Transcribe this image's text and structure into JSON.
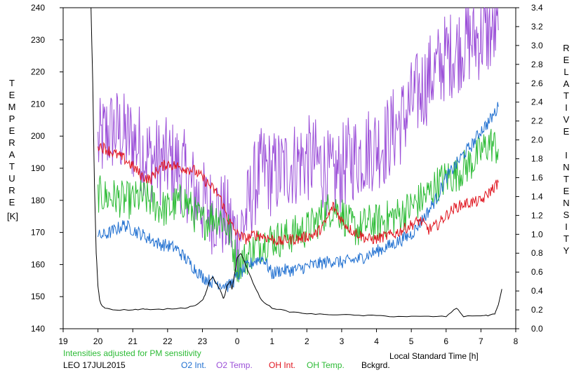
{
  "chart_data": {
    "type": "line",
    "left_axis_label": "TEMPERATURE",
    "left_axis_unit": "[K]",
    "right_axis_label": "RELATIVE INTENSITY",
    "xlabel": "Local Standard Time [h]",
    "note": "Intensities adjusted for PM sensitivity",
    "station_date": "LEO 17JUL2015",
    "x_ticks": [
      19,
      20,
      21,
      22,
      23,
      0,
      1,
      2,
      3,
      4,
      5,
      6,
      7,
      8
    ],
    "y_left_ticks": [
      140,
      150,
      160,
      170,
      180,
      190,
      200,
      210,
      220,
      230,
      240
    ],
    "y_right_ticks": [
      "0.0",
      "0.2",
      "0.4",
      "0.6",
      "0.8",
      "1.0",
      "1.2",
      "1.4",
      "1.6",
      "1.8",
      "2.0",
      "2.2",
      "2.4",
      "2.6",
      "2.8",
      "3.0",
      "3.2",
      "3.4"
    ],
    "x_range": [
      19,
      32
    ],
    "y_left_range": [
      140,
      240
    ],
    "y_right_range": [
      0,
      3.4
    ],
    "grid": false,
    "legend_position": "bottom",
    "colors": {
      "o2_int": "#1f6fd0",
      "o2_temp": "#9b4fd8",
      "oh_int": "#e0141e",
      "oh_temp": "#2cbb35",
      "bckgrd": "#000000"
    },
    "series": [
      {
        "name": "O2 Temp.",
        "axis": "left",
        "color_key": "o2_temp",
        "x": [
          20.0,
          20.25,
          20.5,
          20.75,
          21.0,
          21.25,
          21.5,
          21.75,
          22.0,
          22.25,
          22.5,
          22.75,
          23.0,
          23.25,
          23.5,
          23.75,
          24.0,
          24.25,
          24.5,
          24.75,
          25.0,
          25.25,
          25.5,
          25.75,
          26.0,
          26.25,
          26.5,
          26.75,
          27.0,
          27.25,
          27.5,
          27.75,
          28.0,
          28.25,
          28.5,
          28.75,
          29.0,
          29.25,
          29.5,
          29.75,
          30.0,
          30.25,
          30.5,
          30.75,
          31.0,
          31.25,
          31.5
        ],
        "y": [
          197,
          201,
          202,
          200,
          199,
          196,
          193,
          192,
          192,
          191,
          188,
          183,
          179,
          177,
          176,
          173,
          168,
          175,
          185,
          190,
          188,
          189,
          191,
          192,
          193,
          192,
          190,
          186,
          190,
          193,
          194,
          196,
          197,
          198,
          202,
          205,
          210,
          214,
          218,
          221,
          225,
          226,
          229,
          230,
          231,
          232,
          233
        ]
      },
      {
        "name": "OH Temp.",
        "axis": "left",
        "color_key": "oh_temp",
        "x": [
          20.0,
          20.25,
          20.5,
          20.75,
          21.0,
          21.25,
          21.5,
          21.75,
          22.0,
          22.25,
          22.5,
          22.75,
          23.0,
          23.25,
          23.5,
          23.75,
          24.0,
          24.25,
          24.5,
          24.75,
          25.0,
          25.25,
          25.5,
          25.75,
          26.0,
          26.25,
          26.5,
          26.75,
          27.0,
          27.25,
          27.5,
          27.75,
          28.0,
          28.25,
          28.5,
          28.75,
          29.0,
          29.25,
          29.5,
          29.75,
          30.0,
          30.25,
          30.5,
          30.75,
          31.0,
          31.25,
          31.5
        ],
        "y": [
          182,
          181,
          181,
          180,
          180,
          181,
          180,
          178,
          177,
          179,
          180,
          176,
          173,
          175,
          175,
          171,
          160,
          162,
          165,
          167,
          168,
          168,
          169,
          170,
          171,
          173,
          176,
          178,
          176,
          172,
          171,
          173,
          173,
          174,
          175,
          176,
          178,
          180,
          182,
          185,
          187,
          188,
          190,
          192,
          195,
          198,
          196
        ]
      },
      {
        "name": "O2 Int.",
        "axis": "right",
        "color_key": "o2_int",
        "x": [
          20.0,
          20.25,
          20.5,
          20.75,
          21.0,
          21.25,
          21.5,
          21.75,
          22.0,
          22.25,
          22.5,
          22.75,
          23.0,
          23.25,
          23.5,
          23.75,
          24.0,
          24.25,
          24.5,
          24.75,
          25.0,
          25.25,
          25.5,
          25.75,
          26.0,
          26.25,
          26.5,
          26.75,
          27.0,
          27.25,
          27.5,
          27.75,
          28.0,
          28.25,
          28.5,
          28.75,
          29.0,
          29.25,
          29.5,
          29.75,
          30.0,
          30.25,
          30.5,
          30.75,
          31.0,
          31.25,
          31.5
        ],
        "y": [
          0.98,
          1.0,
          1.05,
          1.1,
          1.05,
          1.0,
          0.95,
          0.9,
          0.88,
          0.85,
          0.75,
          0.65,
          0.55,
          0.5,
          0.48,
          0.45,
          0.55,
          0.65,
          0.72,
          0.75,
          0.58,
          0.62,
          0.62,
          0.63,
          0.66,
          0.68,
          0.7,
          0.72,
          0.7,
          0.72,
          0.74,
          0.78,
          0.82,
          0.86,
          0.9,
          0.95,
          1.0,
          1.12,
          1.25,
          1.4,
          1.6,
          1.72,
          1.85,
          1.95,
          2.1,
          2.2,
          2.35
        ]
      },
      {
        "name": "OH Int.",
        "axis": "right",
        "color_key": "oh_int",
        "x": [
          20.0,
          20.25,
          20.5,
          20.75,
          21.0,
          21.25,
          21.5,
          21.75,
          22.0,
          22.25,
          22.5,
          22.75,
          23.0,
          23.25,
          23.5,
          23.75,
          24.0,
          24.25,
          24.5,
          24.75,
          25.0,
          25.25,
          25.5,
          25.75,
          26.0,
          26.25,
          26.5,
          26.75,
          27.0,
          27.25,
          27.5,
          27.75,
          28.0,
          28.25,
          28.5,
          28.75,
          29.0,
          29.25,
          29.5,
          29.75,
          30.0,
          30.25,
          30.5,
          30.75,
          31.0,
          31.25,
          31.5
        ],
        "y": [
          1.95,
          1.9,
          1.85,
          1.8,
          1.72,
          1.62,
          1.58,
          1.7,
          1.75,
          1.72,
          1.7,
          1.68,
          1.6,
          1.5,
          1.4,
          1.15,
          1.0,
          0.95,
          1.0,
          0.98,
          0.95,
          0.92,
          0.95,
          0.95,
          0.98,
          1.0,
          1.1,
          1.3,
          1.15,
          1.05,
          1.0,
          0.95,
          0.95,
          0.98,
          1.0,
          1.05,
          1.1,
          1.15,
          1.05,
          1.1,
          1.2,
          1.28,
          1.32,
          1.34,
          1.35,
          1.45,
          1.55
        ]
      },
      {
        "name": "Bckgrd.",
        "axis": "right",
        "color_key": "bckgrd",
        "x": [
          19.8,
          19.85,
          19.9,
          19.95,
          20.0,
          20.05,
          20.1,
          20.2,
          20.5,
          21.0,
          21.3,
          21.5,
          22.0,
          22.5,
          22.8,
          23.0,
          23.1,
          23.2,
          23.3,
          23.4,
          23.5,
          23.6,
          23.65,
          23.7,
          23.8,
          23.85,
          24.0,
          24.1,
          24.2,
          24.3,
          24.5,
          24.7,
          25.0,
          25.5,
          26.0,
          26.5,
          27.0,
          27.5,
          28.0,
          28.5,
          29.0,
          29.5,
          30.0,
          30.3,
          30.5,
          31.0,
          31.2,
          31.4,
          31.5,
          31.6
        ],
        "y": [
          3.4,
          2.6,
          1.5,
          0.8,
          0.45,
          0.3,
          0.25,
          0.22,
          0.2,
          0.2,
          0.21,
          0.2,
          0.21,
          0.22,
          0.25,
          0.3,
          0.38,
          0.5,
          0.55,
          0.48,
          0.42,
          0.32,
          0.36,
          0.45,
          0.5,
          0.42,
          0.75,
          0.8,
          0.72,
          0.62,
          0.45,
          0.3,
          0.22,
          0.18,
          0.16,
          0.15,
          0.15,
          0.14,
          0.14,
          0.13,
          0.13,
          0.13,
          0.13,
          0.22,
          0.13,
          0.14,
          0.14,
          0.16,
          0.25,
          0.42
        ]
      }
    ],
    "legend": [
      {
        "label": "O2 Int.",
        "color_key": "o2_int"
      },
      {
        "label": "O2 Temp.",
        "color_key": "o2_temp"
      },
      {
        "label": "OH Int.",
        "color_key": "oh_int"
      },
      {
        "label": "OH Temp.",
        "color_key": "oh_temp"
      },
      {
        "label": "Bckgrd.",
        "color_key": "bckgrd"
      }
    ]
  }
}
